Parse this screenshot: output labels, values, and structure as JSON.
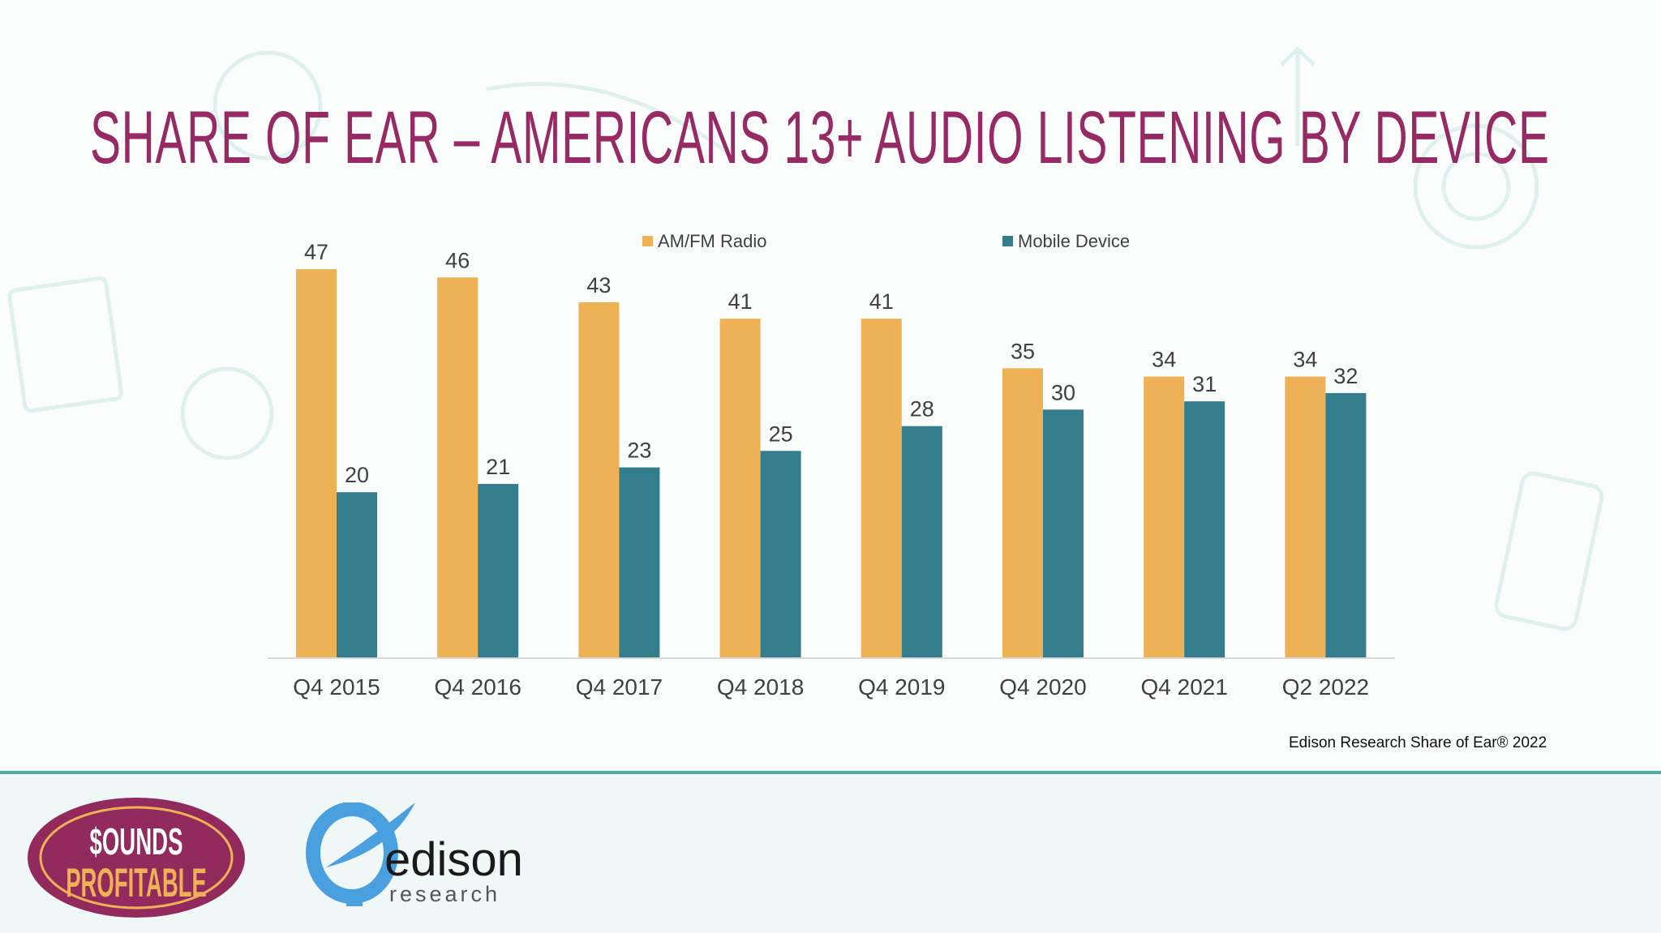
{
  "title": "SHARE OF EAR – AMERICANS 13+ AUDIO LISTENING BY DEVICE",
  "source": "Edison Research Share of Ear® 2022",
  "logos": {
    "sounds_profitable": "$OUNDS PROFITABLE",
    "edison_main": "edison",
    "edison_sub": "research"
  },
  "colors": {
    "title": "#972a64",
    "amfm": "#eeb155",
    "mobile": "#347d8c",
    "rule": "#4fa9a3"
  },
  "chart_data": {
    "type": "bar",
    "title": "",
    "categories": [
      "Q4 2015",
      "Q4 2016",
      "Q4 2017",
      "Q4 2018",
      "Q4 2019",
      "Q4 2020",
      "Q4 2021",
      "Q2 2022"
    ],
    "series": [
      {
        "name": "AM/FM Radio",
        "color": "#eeb155",
        "values": [
          47,
          46,
          43,
          41,
          41,
          35,
          34,
          34
        ]
      },
      {
        "name": "Mobile Device",
        "color": "#347d8c",
        "values": [
          20,
          21,
          23,
          25,
          28,
          30,
          31,
          32
        ]
      }
    ],
    "ylim": [
      0,
      50
    ],
    "grid": false,
    "data_labels": true,
    "legend_position": "top"
  }
}
